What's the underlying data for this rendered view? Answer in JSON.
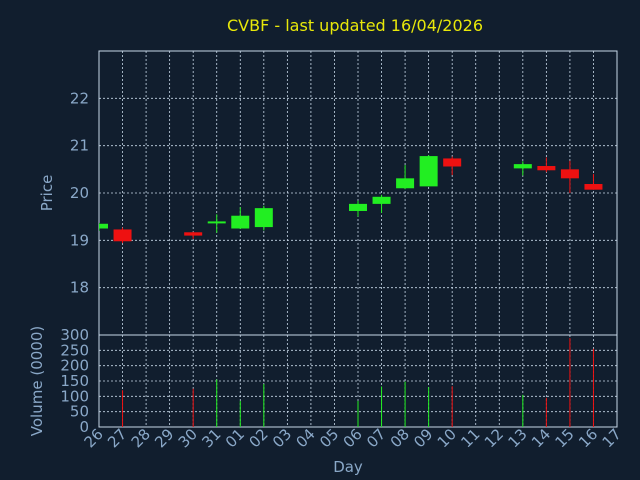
{
  "colors": {
    "background": "#111e2e",
    "title": "#e8e80a",
    "axis_text": "#8aa8c8",
    "axis_label": "#8aa8c8",
    "frame": "#c8d8e8",
    "grid": "#c8d8e8",
    "up": "#22ee22",
    "down": "#ee1111"
  },
  "chart_data": [
    {
      "type": "candlestick",
      "title": "CVBF - last updated 16/04/2026",
      "ylabel": "Price",
      "ylim": [
        17,
        23
      ],
      "yticks": [
        18,
        19,
        20,
        21,
        22
      ],
      "grid": true,
      "categories": [
        "26",
        "27",
        "28",
        "29",
        "30",
        "31",
        "01",
        "02",
        "03",
        "04",
        "05",
        "06",
        "07",
        "08",
        "09",
        "10",
        "11",
        "12",
        "13",
        "14",
        "15",
        "16",
        "17"
      ],
      "candles": [
        {
          "x": "26",
          "open": 19.25,
          "high": 19.37,
          "low": 19.2,
          "close": 19.35
        },
        {
          "x": "27",
          "open": 19.23,
          "high": 19.27,
          "low": 18.94,
          "close": 18.98
        },
        {
          "x": "30",
          "open": 19.17,
          "high": 19.18,
          "low": 19.03,
          "close": 19.1
        },
        {
          "x": "31",
          "open": 19.36,
          "high": 19.55,
          "low": 19.16,
          "close": 19.4
        },
        {
          "x": "01",
          "open": 19.25,
          "high": 19.7,
          "low": 19.24,
          "close": 19.52
        },
        {
          "x": "02",
          "open": 19.28,
          "high": 19.73,
          "low": 19.21,
          "close": 19.68
        },
        {
          "x": "06",
          "open": 19.62,
          "high": 19.84,
          "low": 19.5,
          "close": 19.77
        },
        {
          "x": "07",
          "open": 19.77,
          "high": 19.96,
          "low": 19.58,
          "close": 19.92
        },
        {
          "x": "08",
          "open": 20.1,
          "high": 20.59,
          "low": 20.08,
          "close": 20.31
        },
        {
          "x": "09",
          "open": 20.14,
          "high": 20.8,
          "low": 20.14,
          "close": 20.78
        },
        {
          "x": "10",
          "open": 20.73,
          "high": 20.77,
          "low": 20.38,
          "close": 20.56
        },
        {
          "x": "13",
          "open": 20.52,
          "high": 20.67,
          "low": 20.37,
          "close": 20.61
        },
        {
          "x": "14",
          "open": 20.57,
          "high": 20.75,
          "low": 20.44,
          "close": 20.48
        },
        {
          "x": "15",
          "open": 20.5,
          "high": 20.68,
          "low": 20.0,
          "close": 20.31
        },
        {
          "x": "16",
          "open": 20.19,
          "high": 20.4,
          "low": 20.07,
          "close": 20.07
        }
      ]
    },
    {
      "type": "bar",
      "ylabel": "Volume (0000)",
      "xlabel": "Day",
      "ylim": [
        0,
        300
      ],
      "yticks": [
        0,
        50,
        100,
        150,
        200,
        250,
        300
      ],
      "grid": true,
      "categories": [
        "26",
        "27",
        "28",
        "29",
        "30",
        "31",
        "01",
        "02",
        "03",
        "04",
        "05",
        "06",
        "07",
        "08",
        "09",
        "10",
        "11",
        "12",
        "13",
        "14",
        "15",
        "16",
        "17"
      ],
      "values": [
        {
          "x": "27",
          "value": 120,
          "dir": "down"
        },
        {
          "x": "30",
          "value": 125,
          "dir": "down"
        },
        {
          "x": "31",
          "value": 155,
          "dir": "up"
        },
        {
          "x": "01",
          "value": 85,
          "dir": "up"
        },
        {
          "x": "02",
          "value": 140,
          "dir": "up"
        },
        {
          "x": "06",
          "value": 85,
          "dir": "up"
        },
        {
          "x": "07",
          "value": 132,
          "dir": "up"
        },
        {
          "x": "08",
          "value": 148,
          "dir": "up"
        },
        {
          "x": "09",
          "value": 130,
          "dir": "up"
        },
        {
          "x": "10",
          "value": 133,
          "dir": "down"
        },
        {
          "x": "13",
          "value": 105,
          "dir": "up"
        },
        {
          "x": "14",
          "value": 95,
          "dir": "down"
        },
        {
          "x": "15",
          "value": 290,
          "dir": "down"
        },
        {
          "x": "16",
          "value": 255,
          "dir": "down"
        }
      ]
    }
  ]
}
